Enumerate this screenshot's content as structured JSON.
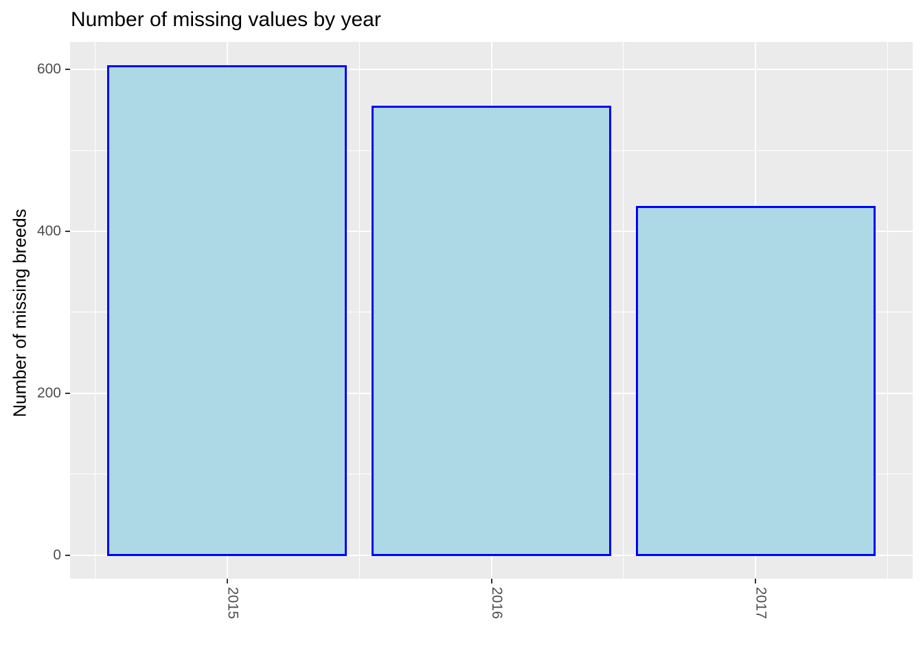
{
  "chart_data": {
    "type": "bar",
    "title": "Number of missing values by year",
    "xlabel": "",
    "ylabel": "Number of missing breeds",
    "categories": [
      "2015",
      "2016",
      "2017"
    ],
    "x": [
      2015,
      2016,
      2017
    ],
    "values": [
      604,
      554,
      430
    ],
    "bar_width": 0.9,
    "xlim": [
      2014.405,
      2017.595
    ],
    "ylim": [
      -29,
      634
    ],
    "y_major_ticks": [
      0,
      200,
      400,
      600
    ],
    "y_minor_gridlines": [
      100,
      300,
      500
    ],
    "x_major_gridlines": [
      2015,
      2016,
      2017
    ],
    "x_minor_gridlines": [
      2014.5,
      2015.5,
      2016.5,
      2017.5
    ],
    "grid": true,
    "legend": "none",
    "style": {
      "bar_fill": "#ADD8E6",
      "bar_border": "#0000FF",
      "panel_background": "#EBEBEB",
      "gridline_color": "#FFFFFF",
      "axis_text_color": "#4D4D4D",
      "tick_mark_color": "#333333",
      "title_color": "#000000",
      "figure_background": "#FFFFFF"
    }
  }
}
